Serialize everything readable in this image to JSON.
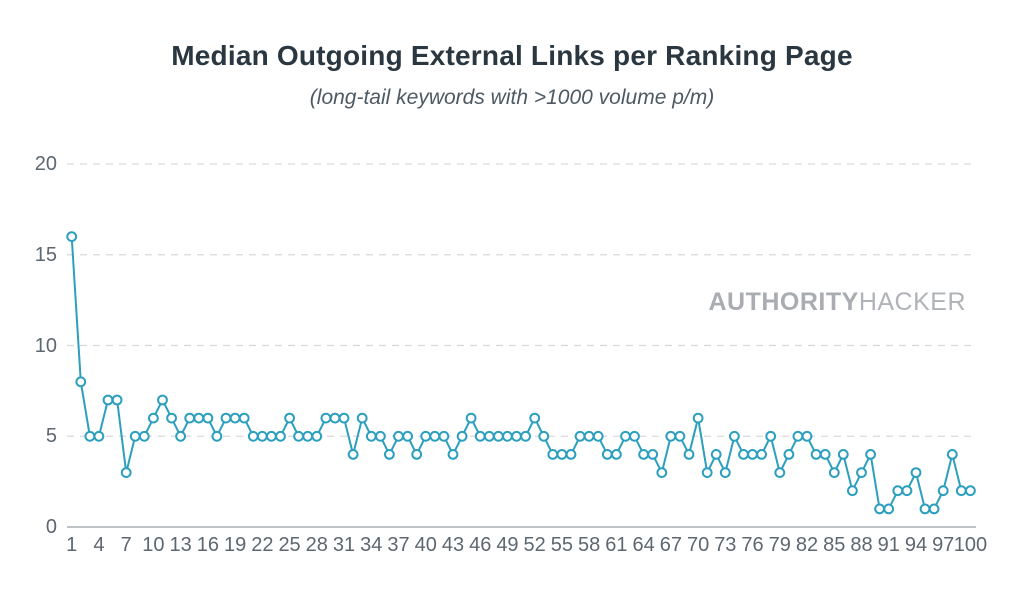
{
  "title": "Median Outgoing External Links per Ranking Page",
  "subtitle": "(long-tail keywords with >1000 volume p/m)",
  "watermark": {
    "bold": "AUTHORITY",
    "light": "HACKER"
  },
  "colors": {
    "line": "#2c9fbe",
    "marker_fill": "#ffffff",
    "grid": "#d9d9d9",
    "axis_line": "#bfc3c6",
    "tick_text": "#5d6770",
    "title_text": "#2a3740",
    "subtitle_text": "#4e5a63",
    "watermark_text": "#a9acb1"
  },
  "chart_data": {
    "type": "line",
    "title": "Median Outgoing External Links per Ranking Page",
    "subtitle": "(long-tail keywords with >1000 volume p/m)",
    "xlabel": "",
    "ylabel": "",
    "x": [
      1,
      2,
      3,
      4,
      5,
      6,
      7,
      8,
      9,
      10,
      11,
      12,
      13,
      14,
      15,
      16,
      17,
      18,
      19,
      20,
      21,
      22,
      23,
      24,
      25,
      26,
      27,
      28,
      29,
      30,
      31,
      32,
      33,
      34,
      35,
      36,
      37,
      38,
      39,
      40,
      41,
      42,
      43,
      44,
      45,
      46,
      47,
      48,
      49,
      50,
      51,
      52,
      53,
      54,
      55,
      56,
      57,
      58,
      59,
      60,
      61,
      62,
      63,
      64,
      65,
      66,
      67,
      68,
      69,
      70,
      71,
      72,
      73,
      74,
      75,
      76,
      77,
      78,
      79,
      80,
      81,
      82,
      83,
      84,
      85,
      86,
      87,
      88,
      89,
      90,
      91,
      92,
      93,
      94,
      95,
      96,
      97,
      98,
      99,
      100
    ],
    "values": [
      16,
      8,
      5,
      5,
      7,
      7,
      3,
      5,
      5,
      6,
      7,
      6,
      5,
      6,
      6,
      6,
      5,
      6,
      6,
      6,
      5,
      5,
      5,
      5,
      6,
      5,
      5,
      5,
      6,
      6,
      6,
      4,
      6,
      5,
      5,
      4,
      5,
      5,
      4,
      5,
      5,
      5,
      4,
      5,
      6,
      5,
      5,
      5,
      5,
      5,
      5,
      6,
      5,
      4,
      4,
      4,
      5,
      5,
      5,
      4,
      4,
      5,
      5,
      4,
      4,
      3,
      5,
      5,
      4,
      6,
      3,
      4,
      3,
      5,
      4,
      4,
      4,
      5,
      3,
      4,
      5,
      5,
      4,
      4,
      3,
      4,
      2,
      3,
      4,
      1,
      1,
      2,
      2,
      3,
      1,
      1,
      2,
      4,
      2,
      2
    ],
    "x_tick_labels": [
      1,
      4,
      7,
      10,
      13,
      16,
      19,
      22,
      25,
      28,
      31,
      34,
      37,
      40,
      43,
      46,
      49,
      52,
      55,
      58,
      61,
      64,
      67,
      70,
      73,
      76,
      79,
      82,
      85,
      88,
      91,
      94,
      97,
      100
    ],
    "y_ticks": [
      0,
      5,
      10,
      15,
      20
    ],
    "ylim": [
      0,
      20
    ],
    "xlim": [
      1,
      100
    ],
    "grid": "dashed-horizontal",
    "legend": "none",
    "marker": "open-circle"
  }
}
